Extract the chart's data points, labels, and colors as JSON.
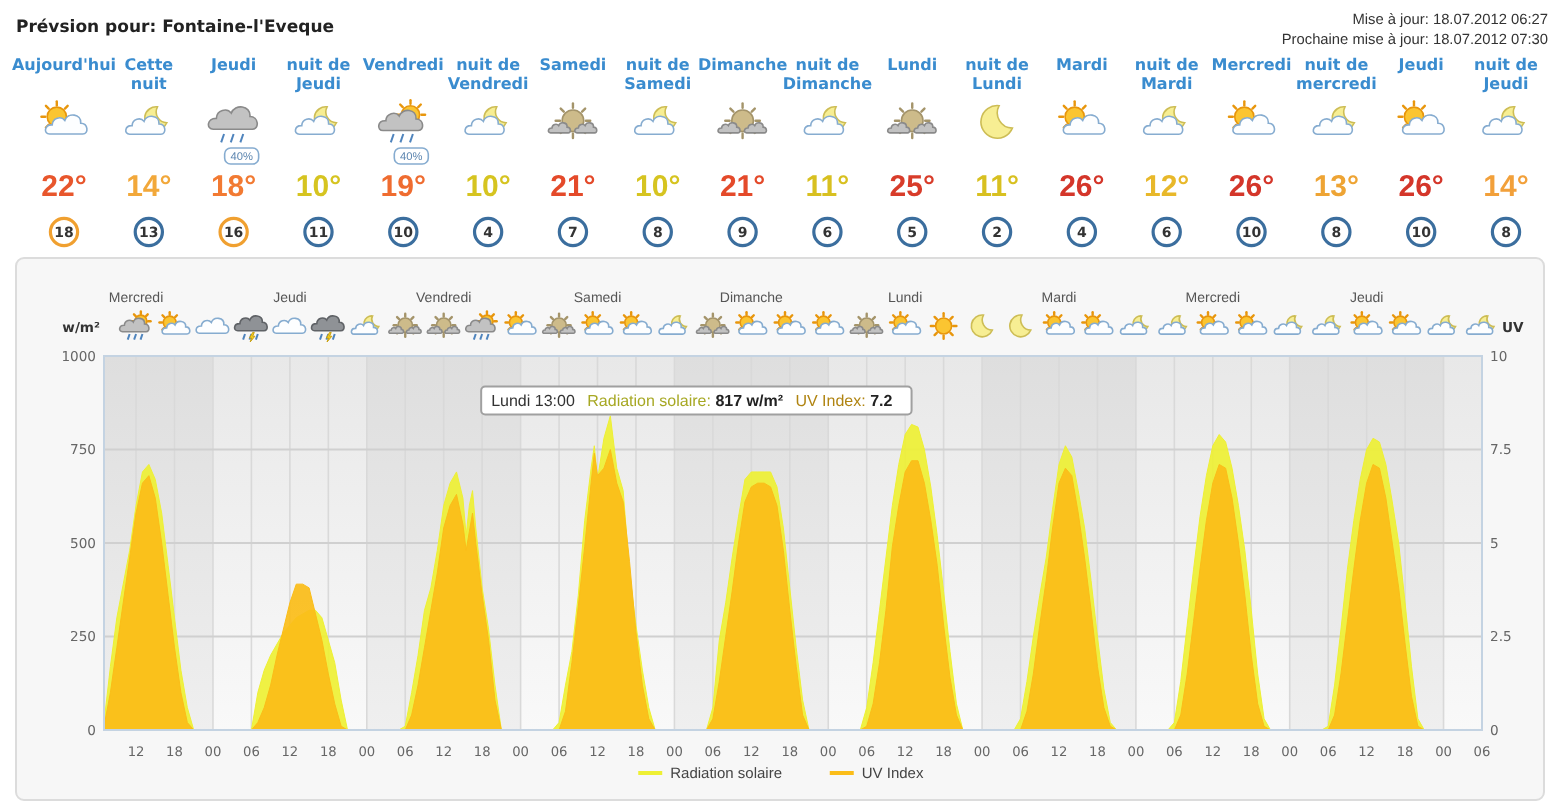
{
  "chart_data": [
    {
      "type": "other",
      "title": "Prévsion pour: Fontaine-l'Eveque",
      "annotations": [
        "Mise à jour: 18.07.2012 06:27",
        "Prochaine mise à jour: 18.07.2012 07:30"
      ],
      "categories": [
        "Aujourd'hui",
        "Cette nuit",
        "Jeudi",
        "nuit de Jeudi",
        "Vendredi",
        "nuit de Vendredi",
        "Samedi",
        "nuit de Samedi",
        "Dimanche",
        "nuit de Dimanche",
        "Lundi",
        "nuit de Lundi",
        "Mardi",
        "nuit de Mardi",
        "Mercredi",
        "nuit de mercredi",
        "Jeudi",
        "nuit de Jeudi"
      ],
      "data_labels": true,
      "series": [
        {
          "values": [
            22,
            14,
            18,
            10,
            19,
            10,
            21,
            10,
            21,
            11,
            25,
            11,
            26,
            12,
            26,
            13,
            26,
            14
          ],
          "value_labels": [
            "22°",
            "14°",
            "18°",
            "10°",
            "19°",
            "10°",
            "21°",
            "10°",
            "21°",
            "11°",
            "25°",
            "11°",
            "26°",
            "12°",
            "26°",
            "13°",
            "26°",
            "14°"
          ],
          "colors": [
            "#e8562c",
            "#f2a83a",
            "#f27a32",
            "#d6c420",
            "#ef6c30",
            "#d6c420",
            "#e44a2a",
            "#d6c420",
            "#e44a2a",
            "#d8c020",
            "#d83c2a",
            "#d8c020",
            "#d4362a",
            "#e8b82a",
            "#d4362a",
            "#eea434",
            "#d4362a",
            "#f2a03a"
          ]
        },
        {
          "values": [
            null,
            null,
            40,
            null,
            40,
            null,
            null,
            null,
            null,
            null,
            null,
            null,
            null,
            null,
            null,
            null,
            null,
            null
          ],
          "value_labels": [
            null,
            null,
            "40%",
            null,
            "40%",
            null,
            null,
            null,
            null,
            null,
            null,
            null,
            null,
            null,
            null,
            null,
            null,
            null
          ]
        },
        {
          "values": [
            18,
            13,
            16,
            11,
            10,
            4,
            7,
            8,
            9,
            6,
            5,
            2,
            4,
            6,
            10,
            8,
            10,
            8
          ],
          "colors": [
            "#f0a030",
            "#3b6e9e",
            "#f0a030",
            "#3b6e9e",
            "#3b6e9e",
            "#3b6e9e",
            "#3b6e9e",
            "#3b6e9e",
            "#3b6e9e",
            "#3b6e9e",
            "#3b6e9e",
            "#3b6e9e",
            "#3b6e9e",
            "#3b6e9e",
            "#3b6e9e",
            "#3b6e9e",
            "#3b6e9e",
            "#3b6e9e"
          ]
        }
      ]
    },
    {
      "type": "area",
      "ylabel": "w/m²",
      "y2label": "UV",
      "x": [
        "2012-07-18T07:00",
        "2012-07-18T08:00",
        "2012-07-18T09:00",
        "2012-07-18T10:00",
        "2012-07-18T11:00",
        "2012-07-18T12:00",
        "2012-07-18T13:00",
        "2012-07-18T14:00",
        "2012-07-18T15:00",
        "2012-07-18T16:00",
        "2012-07-18T17:00",
        "2012-07-18T18:00",
        "2012-07-18T19:00",
        "2012-07-18T20:00",
        "2012-07-18T21:00",
        "2012-07-19T05:00",
        "2012-07-19T06:00",
        "2012-07-19T07:00",
        "2012-07-19T08:00",
        "2012-07-19T09:00",
        "2012-07-19T10:00",
        "2012-07-19T11:00",
        "2012-07-19T12:00",
        "2012-07-19T13:00",
        "2012-07-19T14:00",
        "2012-07-19T15:00",
        "2012-07-19T16:00",
        "2012-07-19T17:00",
        "2012-07-19T18:00",
        "2012-07-19T19:00",
        "2012-07-19T20:00",
        "2012-07-19T21:00",
        "2012-07-20T05:00",
        "2012-07-20T06:00",
        "2012-07-20T07:00",
        "2012-07-20T08:00",
        "2012-07-20T09:00",
        "2012-07-20T10:00",
        "2012-07-20T11:00",
        "2012-07-20T12:00",
        "2012-07-20T13:00",
        "2012-07-20T14:00",
        "2012-07-20T15:00",
        "2012-07-20T15:30",
        "2012-07-20T16:00",
        "2012-07-20T16:30",
        "2012-07-20T17:00",
        "2012-07-20T18:00",
        "2012-07-20T19:00",
        "2012-07-20T20:00",
        "2012-07-20T21:00",
        "2012-07-21T05:00",
        "2012-07-21T06:00",
        "2012-07-21T07:00",
        "2012-07-21T08:00",
        "2012-07-21T09:00",
        "2012-07-21T10:00",
        "2012-07-21T11:00",
        "2012-07-21T11:30",
        "2012-07-21T12:00",
        "2012-07-21T13:00",
        "2012-07-21T14:00",
        "2012-07-21T15:00",
        "2012-07-21T16:00",
        "2012-07-21T17:00",
        "2012-07-21T18:00",
        "2012-07-21T19:00",
        "2012-07-21T20:00",
        "2012-07-21T21:00",
        "2012-07-22T05:00",
        "2012-07-22T06:00",
        "2012-07-22T07:00",
        "2012-07-22T08:00",
        "2012-07-22T09:00",
        "2012-07-22T10:00",
        "2012-07-22T11:00",
        "2012-07-22T12:00",
        "2012-07-22T13:00",
        "2012-07-22T14:00",
        "2012-07-22T15:00",
        "2012-07-22T16:00",
        "2012-07-22T17:00",
        "2012-07-22T18:00",
        "2012-07-22T19:00",
        "2012-07-22T20:00",
        "2012-07-22T21:00",
        "2012-07-23T05:00",
        "2012-07-23T06:00",
        "2012-07-23T07:00",
        "2012-07-23T08:00",
        "2012-07-23T09:00",
        "2012-07-23T10:00",
        "2012-07-23T11:00",
        "2012-07-23T12:00",
        "2012-07-23T13:00",
        "2012-07-23T14:00",
        "2012-07-23T15:00",
        "2012-07-23T16:00",
        "2012-07-23T17:00",
        "2012-07-23T18:00",
        "2012-07-23T19:00",
        "2012-07-23T20:00",
        "2012-07-23T21:00",
        "2012-07-24T05:00",
        "2012-07-24T06:00",
        "2012-07-24T07:00",
        "2012-07-24T08:00",
        "2012-07-24T09:00",
        "2012-07-24T10:00",
        "2012-07-24T11:00",
        "2012-07-24T12:00",
        "2012-07-24T13:00",
        "2012-07-24T14:00",
        "2012-07-24T15:00",
        "2012-07-24T16:00",
        "2012-07-24T17:00",
        "2012-07-24T18:00",
        "2012-07-24T19:00",
        "2012-07-24T20:00",
        "2012-07-24T21:00",
        "2012-07-25T05:00",
        "2012-07-25T06:00",
        "2012-07-25T07:00",
        "2012-07-25T08:00",
        "2012-07-25T09:00",
        "2012-07-25T10:00",
        "2012-07-25T11:00",
        "2012-07-25T12:00",
        "2012-07-25T13:00",
        "2012-07-25T14:00",
        "2012-07-25T15:00",
        "2012-07-25T16:00",
        "2012-07-25T17:00",
        "2012-07-25T18:00",
        "2012-07-25T19:00",
        "2012-07-25T20:00",
        "2012-07-25T21:00",
        "2012-07-26T05:00",
        "2012-07-26T06:00",
        "2012-07-26T07:00",
        "2012-07-26T08:00",
        "2012-07-26T09:00",
        "2012-07-26T10:00",
        "2012-07-26T11:00",
        "2012-07-26T12:00",
        "2012-07-26T13:00",
        "2012-07-26T14:00",
        "2012-07-26T15:00",
        "2012-07-26T16:00",
        "2012-07-26T17:00",
        "2012-07-26T18:00",
        "2012-07-26T19:00",
        "2012-07-26T20:00",
        "2012-07-26T21:00",
        "2012-07-27T06:00"
      ],
      "series": [
        {
          "name": "Radiation solaire",
          "color": "#eef034",
          "values": [
            20,
            170,
            300,
            390,
            480,
            600,
            690,
            710,
            670,
            580,
            440,
            300,
            160,
            60,
            0,
            0,
            0,
            100,
            160,
            200,
            230,
            260,
            280,
            300,
            310,
            320,
            320,
            300,
            240,
            180,
            80,
            0,
            0,
            10,
            100,
            200,
            320,
            380,
            480,
            600,
            660,
            690,
            620,
            520,
            600,
            640,
            540,
            380,
            270,
            120,
            0,
            0,
            20,
            120,
            210,
            360,
            560,
            700,
            760,
            670,
            780,
            840,
            700,
            640,
            420,
            280,
            160,
            60,
            0,
            0,
            60,
            240,
            340,
            460,
            570,
            670,
            690,
            690,
            690,
            690,
            650,
            540,
            380,
            220,
            80,
            0,
            0,
            60,
            180,
            320,
            460,
            600,
            710,
            790,
            817,
            810,
            750,
            650,
            520,
            370,
            210,
            70,
            0,
            0,
            30,
            130,
            250,
            360,
            460,
            590,
            710,
            760,
            730,
            640,
            540,
            400,
            250,
            110,
            20,
            0,
            0,
            20,
            130,
            280,
            430,
            570,
            680,
            760,
            790,
            770,
            700,
            600,
            480,
            320,
            150,
            30,
            0,
            0,
            10,
            120,
            270,
            430,
            560,
            670,
            750,
            780,
            770,
            710,
            610,
            500,
            340,
            170,
            30,
            0,
            0
          ]
        },
        {
          "name": "UV Index",
          "color": "#fbbd18",
          "axis": "y2",
          "values": [
            0.1,
            1.0,
            2.2,
            3.4,
            4.6,
            5.8,
            6.6,
            6.8,
            6.2,
            5.0,
            3.6,
            2.2,
            1.0,
            0.2,
            0,
            0,
            0,
            0.2,
            0.6,
            1.2,
            2.0,
            2.7,
            3.4,
            3.9,
            3.9,
            3.8,
            3.1,
            2.4,
            1.5,
            0.7,
            0.1,
            0,
            0,
            0,
            0.4,
            1.2,
            2.2,
            3.2,
            4.2,
            5.4,
            6.0,
            6.3,
            5.5,
            4.8,
            5.3,
            5.8,
            5.0,
            3.6,
            2.4,
            0.8,
            0,
            0,
            0,
            0.5,
            1.8,
            3.3,
            4.9,
            6.6,
            7.4,
            6.8,
            7.0,
            7.5,
            6.6,
            6.1,
            4.5,
            2.6,
            1.2,
            0.3,
            0,
            0,
            0.3,
            1.3,
            2.5,
            3.7,
            5.0,
            6.1,
            6.5,
            6.6,
            6.6,
            6.5,
            6.0,
            4.8,
            3.2,
            1.7,
            0.4,
            0,
            0,
            0.1,
            0.7,
            1.8,
            3.2,
            4.9,
            6.0,
            6.9,
            7.2,
            7.2,
            6.6,
            5.6,
            4.4,
            2.8,
            1.4,
            0.4,
            0,
            0,
            0,
            0.5,
            1.5,
            2.8,
            4.0,
            5.4,
            6.6,
            7.0,
            6.8,
            5.8,
            4.6,
            3.2,
            1.7,
            0.6,
            0.1,
            0,
            0,
            0,
            0.4,
            1.5,
            2.9,
            4.3,
            5.6,
            6.6,
            7.1,
            7.0,
            6.2,
            5.0,
            3.6,
            2.0,
            0.7,
            0.1,
            0,
            0,
            0,
            0.4,
            1.5,
            2.9,
            4.3,
            5.6,
            6.6,
            7.1,
            7.0,
            6.2,
            5.0,
            3.8,
            2.3,
            0.9,
            0.1,
            0,
            0
          ]
        }
      ],
      "xlim": [
        "2012-07-18T07:00",
        "2012-07-27T06:00"
      ],
      "xticks": [
        {
          "value": "2012-07-18T12:00",
          "label": "12"
        },
        {
          "value": "2012-07-18T18:00",
          "label": "18"
        },
        {
          "value": "2012-07-19T00:00",
          "label": "00"
        },
        {
          "value": "2012-07-19T06:00",
          "label": "06"
        },
        {
          "value": "2012-07-19T12:00",
          "label": "12"
        },
        {
          "value": "2012-07-19T18:00",
          "label": "18"
        },
        {
          "value": "2012-07-20T00:00",
          "label": "00"
        },
        {
          "value": "2012-07-20T06:00",
          "label": "06"
        },
        {
          "value": "2012-07-20T12:00",
          "label": "12"
        },
        {
          "value": "2012-07-20T18:00",
          "label": "18"
        },
        {
          "value": "2012-07-21T00:00",
          "label": "00"
        },
        {
          "value": "2012-07-21T06:00",
          "label": "06"
        },
        {
          "value": "2012-07-21T12:00",
          "label": "12"
        },
        {
          "value": "2012-07-21T18:00",
          "label": "18"
        },
        {
          "value": "2012-07-22T00:00",
          "label": "00"
        },
        {
          "value": "2012-07-22T06:00",
          "label": "06"
        },
        {
          "value": "2012-07-22T12:00",
          "label": "12"
        },
        {
          "value": "2012-07-22T18:00",
          "label": "18"
        },
        {
          "value": "2012-07-23T00:00",
          "label": "00"
        },
        {
          "value": "2012-07-23T06:00",
          "label": "06"
        },
        {
          "value": "2012-07-23T12:00",
          "label": "12"
        },
        {
          "value": "2012-07-23T18:00",
          "label": "18"
        },
        {
          "value": "2012-07-24T00:00",
          "label": "00"
        },
        {
          "value": "2012-07-24T06:00",
          "label": "06"
        },
        {
          "value": "2012-07-24T12:00",
          "label": "12"
        },
        {
          "value": "2012-07-24T18:00",
          "label": "18"
        },
        {
          "value": "2012-07-25T00:00",
          "label": "00"
        },
        {
          "value": "2012-07-25T06:00",
          "label": "06"
        },
        {
          "value": "2012-07-25T12:00",
          "label": "12"
        },
        {
          "value": "2012-07-25T18:00",
          "label": "18"
        },
        {
          "value": "2012-07-26T00:00",
          "label": "00"
        },
        {
          "value": "2012-07-26T06:00",
          "label": "06"
        },
        {
          "value": "2012-07-26T12:00",
          "label": "12"
        },
        {
          "value": "2012-07-26T18:00",
          "label": "18"
        },
        {
          "value": "2012-07-27T00:00",
          "label": "00"
        },
        {
          "value": "2012-07-27T06:00",
          "label": "06"
        }
      ],
      "ylim": [
        0,
        1000
      ],
      "yticks": [
        0,
        250,
        500,
        750,
        1000
      ],
      "y2lim": [
        0,
        10
      ],
      "y2ticks": [
        0,
        2.5,
        5,
        7.5,
        10
      ],
      "grid": true,
      "legend": "bottom",
      "bands": [
        {
          "axis": "x",
          "from": "2012-07-18T07:00",
          "to": "2012-07-19T00:00"
        },
        {
          "axis": "x",
          "from": "2012-07-20T00:00",
          "to": "2012-07-21T00:00"
        },
        {
          "axis": "x",
          "from": "2012-07-22T00:00",
          "to": "2012-07-23T00:00"
        },
        {
          "axis": "x",
          "from": "2012-07-24T00:00",
          "to": "2012-07-25T00:00"
        },
        {
          "axis": "x",
          "from": "2012-07-26T00:00",
          "to": "2012-07-27T00:00"
        }
      ],
      "annotations": [
        "Mercredi",
        "Jeudi",
        "Vendredi",
        "Samedi",
        "Dimanche",
        "Lundi",
        "Mardi",
        "Mercredi",
        "Jeudi",
        {
          "text": "Lundi 13:00 Radiation solaire: 817 w/m² UV Index: 7.2",
          "x": "2012-07-23T13:00",
          "y": 817
        }
      ]
    }
  ]
}
